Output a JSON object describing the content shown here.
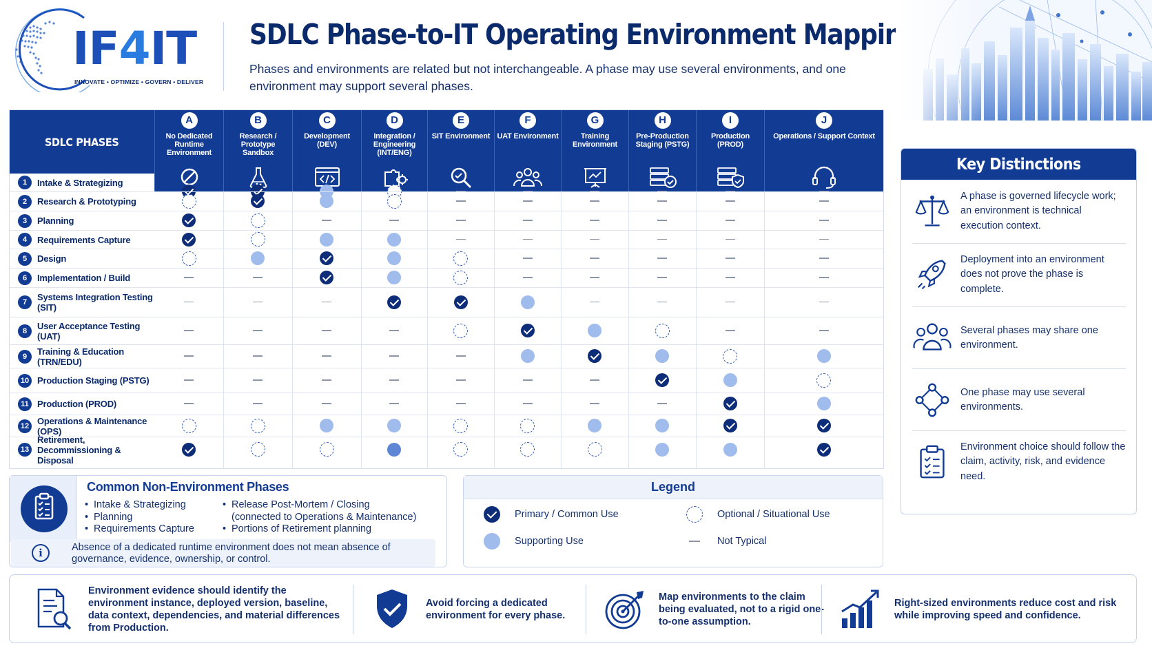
{
  "header": {
    "logo_prefix": "IF",
    "logo_four": "4",
    "logo_suffix": "IT",
    "logo_tagline": "INNOVATE • OPTIMIZE • GOVERN • DELIVER",
    "title": "SDLC Phase-to-IT Operating Environment Mapping Matrix",
    "subtitle": "Phases and environments are related but not interchangeable. A phase may use several environments, and one environment may support several phases."
  },
  "colors": {
    "navy": "#123b94",
    "dark_navy": "#0e2d78",
    "support_blue": "#9fbcec",
    "support_strong": "#5f86d4",
    "text": "#15306e"
  },
  "matrix": {
    "phases_header": "SDLC PHASES",
    "columns": [
      {
        "letter": "A",
        "label": "No Dedicated Runtime Environment",
        "icon": "prohibited-icon"
      },
      {
        "letter": "B",
        "label": "Research / Prototype Sandbox",
        "icon": "flask-icon"
      },
      {
        "letter": "C",
        "label": "Development (DEV)",
        "icon": "code-window-icon"
      },
      {
        "letter": "D",
        "label": "Integration / Engineering (INT/ENG)",
        "icon": "puzzle-gears-icon"
      },
      {
        "letter": "E",
        "label": "SIT Environment",
        "icon": "magnifier-check-icon"
      },
      {
        "letter": "F",
        "label": "UAT Environment",
        "icon": "users-group-icon"
      },
      {
        "letter": "G",
        "label": "Training Environment",
        "icon": "presentation-board-icon"
      },
      {
        "letter": "H",
        "label": "Pre-Production Staging (PSTG)",
        "icon": "server-check-icon"
      },
      {
        "letter": "I",
        "label": "Production (PROD)",
        "icon": "server-shield-icon"
      },
      {
        "letter": "J",
        "label": "Operations / Support Context",
        "icon": "headset-icon"
      }
    ],
    "rows": [
      {
        "num": "1",
        "label": "Intake & Strategizing",
        "cells": [
          "P",
          "P",
          "S",
          "O",
          "N",
          "N",
          "N",
          "N",
          "N",
          "N"
        ]
      },
      {
        "num": "2",
        "label": "Research & Prototyping",
        "cells": [
          "O",
          "P",
          "S",
          "O",
          "N",
          "N",
          "N",
          "N",
          "N",
          "N"
        ]
      },
      {
        "num": "3",
        "label": "Planning",
        "cells": [
          "P",
          "O",
          "N",
          "N",
          "N",
          "N",
          "N",
          "N",
          "N",
          "N"
        ]
      },
      {
        "num": "4",
        "label": "Requirements Capture",
        "cells": [
          "P",
          "O",
          "S",
          "S",
          "N",
          "N",
          "N",
          "N",
          "N",
          "N"
        ]
      },
      {
        "num": "5",
        "label": "Design",
        "cells": [
          "O",
          "S",
          "P",
          "S",
          "O",
          "N",
          "N",
          "N",
          "N",
          "N"
        ]
      },
      {
        "num": "6",
        "label": "Implementation / Build",
        "cells": [
          "N",
          "N",
          "P",
          "S",
          "O",
          "N",
          "N",
          "N",
          "N",
          "N"
        ]
      },
      {
        "num": "7",
        "label": "Systems Integration Testing (SIT)",
        "cells": [
          "N",
          "N",
          "N",
          "P",
          "P",
          "S",
          "N",
          "N",
          "N",
          "N"
        ]
      },
      {
        "num": "8",
        "label": "User Acceptance Testing (UAT)",
        "cells": [
          "N",
          "N",
          "N",
          "N",
          "O",
          "P",
          "S",
          "O",
          "N",
          "N"
        ]
      },
      {
        "num": "9",
        "label": "Training & Education (TRN/EDU)",
        "cells": [
          "N",
          "N",
          "N",
          "N",
          "N",
          "S",
          "P",
          "S",
          "O",
          "S"
        ]
      },
      {
        "num": "10",
        "label": "Production Staging (PSTG)",
        "cells": [
          "N",
          "N",
          "N",
          "N",
          "N",
          "N",
          "N",
          "P",
          "S",
          "O"
        ]
      },
      {
        "num": "11",
        "label": "Production (PROD)",
        "cells": [
          "N",
          "N",
          "N",
          "N",
          "N",
          "N",
          "N",
          "N",
          "P",
          "S"
        ]
      },
      {
        "num": "12",
        "label": "Operations & Maintenance (OPS)",
        "cells": [
          "O",
          "O",
          "S",
          "S",
          "O",
          "O",
          "S",
          "S",
          "P",
          "P"
        ]
      },
      {
        "num": "13",
        "label": "Retirement, Decommissioning & Disposal",
        "cells": [
          "P",
          "O",
          "O",
          "SS",
          "O",
          "O",
          "O",
          "S",
          "S",
          "P"
        ]
      }
    ]
  },
  "key_distinctions": {
    "title": "Key Distinctions",
    "items": [
      {
        "icon": "scales-icon",
        "text": "A phase is governed lifecycle work; an environment is technical execution context."
      },
      {
        "icon": "rocket-icon",
        "text": "Deployment into an environment does not prove the phase is complete."
      },
      {
        "icon": "people-group-icon",
        "text": "Several phases may share one environment."
      },
      {
        "icon": "network-nodes-icon",
        "text": "One phase may use several environments."
      },
      {
        "icon": "clipboard-checklist-icon",
        "text": "Environment choice should follow the claim, activity, risk, and evidence need."
      }
    ]
  },
  "common_phases": {
    "title": "Common Non-Environment Phases",
    "col1": [
      "Intake & Strategizing",
      "Planning",
      "Requirements Capture"
    ],
    "col2": [
      "Release Post-Mortem / Closing",
      "(connected to Operations & Maintenance)",
      "Portions of Retirement planning"
    ],
    "note": "Absence of a dedicated runtime environment does not mean absence of governance, evidence, ownership, or control."
  },
  "legend": {
    "title": "Legend",
    "primary": "Primary / Common Use",
    "optional": "Optional / Situational Use",
    "supporting": "Supporting Use",
    "not_typical": "Not Typical"
  },
  "band": [
    {
      "icon": "document-search-icon",
      "text": "Environment evidence should identify the environment instance, deployed version, baseline, data context, dependencies, and material differences from Production."
    },
    {
      "icon": "shield-check-icon",
      "text": "Avoid forcing a dedicated environment for every phase."
    },
    {
      "icon": "target-arrow-icon",
      "text": "Map environments to the claim being evaluated, not to a rigid one-to-one assumption."
    },
    {
      "icon": "growth-chart-icon",
      "text": "Right-sized environments reduce cost and risk while improving speed and confidence."
    }
  ]
}
